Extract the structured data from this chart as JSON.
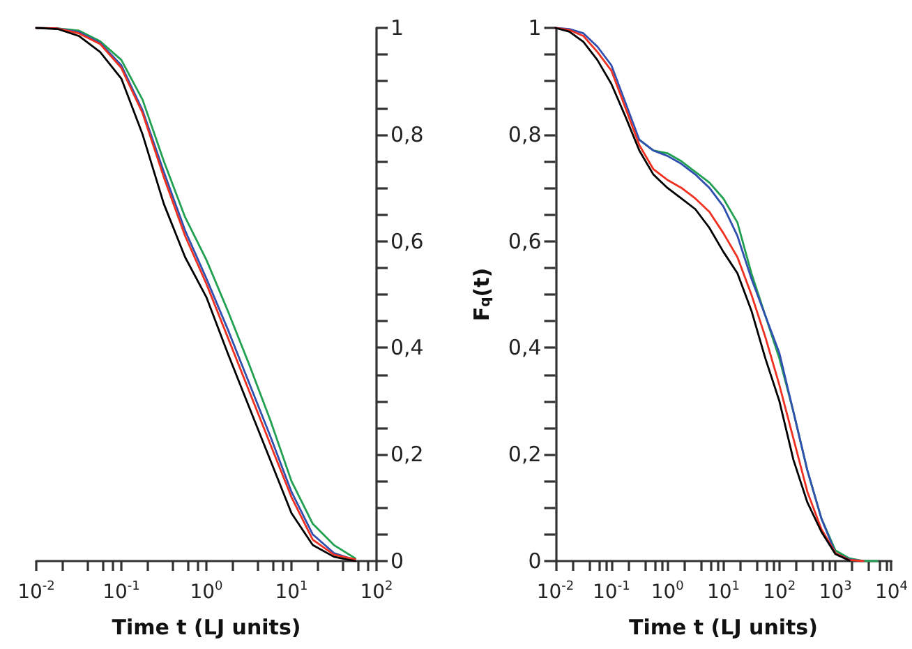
{
  "chart_data": [
    {
      "type": "line",
      "log": "x",
      "xlabel": "Time t (LJ units)",
      "grid": false,
      "marker": "none",
      "line_style": "solid",
      "xlim": [
        0.01,
        100
      ],
      "ylim": [
        0,
        1
      ],
      "xticks": [
        {
          "value": 0.01,
          "label": "10$^{-2}$"
        },
        {
          "value": 0.02,
          "label": null
        },
        {
          "value": 0.04,
          "label": null
        },
        {
          "value": 0.06,
          "label": null
        },
        {
          "value": 0.08,
          "label": null
        },
        {
          "value": 0.1,
          "label": "10$^{-1}$"
        },
        {
          "value": 0.2,
          "label": null
        },
        {
          "value": 0.4,
          "label": null
        },
        {
          "value": 0.6,
          "label": null
        },
        {
          "value": 0.8,
          "label": null
        },
        {
          "value": 1,
          "label": "10$^{0}$"
        },
        {
          "value": 2,
          "label": null
        },
        {
          "value": 4,
          "label": null
        },
        {
          "value": 6,
          "label": null
        },
        {
          "value": 8,
          "label": null
        },
        {
          "value": 10,
          "label": "10$^{1}$"
        },
        {
          "value": 20,
          "label": null
        },
        {
          "value": 40,
          "label": null
        },
        {
          "value": 60,
          "label": null
        },
        {
          "value": 80,
          "label": null
        },
        {
          "value": 100,
          "label": "10$^{2}$"
        }
      ],
      "yticks": [
        {
          "value": 0,
          "label": "0"
        },
        {
          "value": 0.05,
          "label": null
        },
        {
          "value": 0.1,
          "label": null
        },
        {
          "value": 0.15,
          "label": null
        },
        {
          "value": 0.2,
          "label": "0,2"
        },
        {
          "value": 0.25,
          "label": null
        },
        {
          "value": 0.3,
          "label": null
        },
        {
          "value": 0.35,
          "label": null
        },
        {
          "value": 0.4,
          "label": "0,4"
        },
        {
          "value": 0.45,
          "label": null
        },
        {
          "value": 0.5,
          "label": null
        },
        {
          "value": 0.55,
          "label": null
        },
        {
          "value": 0.6,
          "label": "0,6"
        },
        {
          "value": 0.65,
          "label": null
        },
        {
          "value": 0.7,
          "label": null
        },
        {
          "value": 0.75,
          "label": null
        },
        {
          "value": 0.8,
          "label": "0,8"
        },
        {
          "value": 0.85,
          "label": null
        },
        {
          "value": 0.9,
          "label": null
        },
        {
          "value": 0.95,
          "label": null
        },
        {
          "value": 1,
          "label": "1"
        }
      ],
      "x": [
        0.01,
        0.0178,
        0.0316,
        0.0562,
        0.1,
        0.178,
        0.316,
        0.562,
        1,
        1.78,
        3.16,
        5.62,
        10,
        17.8,
        31.6,
        56.2
      ],
      "series": [
        {
          "color": "#20a050",
          "values": [
            1,
            0.999,
            0.995,
            0.975,
            0.94,
            0.865,
            0.75,
            0.645,
            0.565,
            0.47,
            0.37,
            0.265,
            0.15,
            0.07,
            0.03,
            0.005
          ]
        },
        {
          "color": "#3050b0",
          "values": [
            1,
            0.999,
            0.992,
            0.972,
            0.93,
            0.845,
            0.73,
            0.62,
            0.53,
            0.435,
            0.335,
            0.235,
            0.13,
            0.05,
            0.015,
            0.002
          ]
        },
        {
          "color": "#f03020",
          "values": [
            1,
            0.999,
            0.99,
            0.97,
            0.925,
            0.84,
            0.72,
            0.61,
            0.52,
            0.42,
            0.32,
            0.22,
            0.12,
            0.04,
            0.012,
            0.003
          ]
        },
        {
          "color": "#000000",
          "values": [
            1,
            0.998,
            0.985,
            0.955,
            0.905,
            0.8,
            0.67,
            0.57,
            0.495,
            0.39,
            0.29,
            0.19,
            0.09,
            0.03,
            0.008,
            0
          ]
        }
      ]
    },
    {
      "type": "line",
      "log": "x",
      "xlabel": "Time t (LJ units)",
      "ylabel": "F$_{q}$(t)",
      "grid": false,
      "marker": "none",
      "line_style": "solid",
      "xlim": [
        0.01,
        10000
      ],
      "ylim": [
        0,
        1
      ],
      "xticks": [
        {
          "value": 0.01,
          "label": "10$^{-2}$"
        },
        {
          "value": 0.02,
          "label": null
        },
        {
          "value": 0.04,
          "label": null
        },
        {
          "value": 0.06,
          "label": null
        },
        {
          "value": 0.08,
          "label": null
        },
        {
          "value": 0.1,
          "label": "10$^{-1}$"
        },
        {
          "value": 0.2,
          "label": null
        },
        {
          "value": 0.4,
          "label": null
        },
        {
          "value": 0.6,
          "label": null
        },
        {
          "value": 0.8,
          "label": null
        },
        {
          "value": 1,
          "label": "10$^{0}$"
        },
        {
          "value": 2,
          "label": null
        },
        {
          "value": 4,
          "label": null
        },
        {
          "value": 6,
          "label": null
        },
        {
          "value": 8,
          "label": null
        },
        {
          "value": 10,
          "label": "10$^{1}$"
        },
        {
          "value": 20,
          "label": null
        },
        {
          "value": 40,
          "label": null
        },
        {
          "value": 60,
          "label": null
        },
        {
          "value": 80,
          "label": null
        },
        {
          "value": 100,
          "label": "10$^{2}$"
        },
        {
          "value": 200,
          "label": null
        },
        {
          "value": 400,
          "label": null
        },
        {
          "value": 600,
          "label": null
        },
        {
          "value": 800,
          "label": null
        },
        {
          "value": 1000,
          "label": "10$^{3}$"
        },
        {
          "value": 2000,
          "label": null
        },
        {
          "value": 4000,
          "label": null
        },
        {
          "value": 6000,
          "label": null
        },
        {
          "value": 8000,
          "label": null
        },
        {
          "value": 10000,
          "label": "10$^{4}$"
        }
      ],
      "yticks": [
        {
          "value": 0,
          "label": "0"
        },
        {
          "value": 0.05,
          "label": null
        },
        {
          "value": 0.1,
          "label": null
        },
        {
          "value": 0.15,
          "label": null
        },
        {
          "value": 0.2,
          "label": "0,2"
        },
        {
          "value": 0.25,
          "label": null
        },
        {
          "value": 0.3,
          "label": null
        },
        {
          "value": 0.35,
          "label": null
        },
        {
          "value": 0.4,
          "label": "0,4"
        },
        {
          "value": 0.45,
          "label": null
        },
        {
          "value": 0.5,
          "label": null
        },
        {
          "value": 0.55,
          "label": null
        },
        {
          "value": 0.6,
          "label": "0,6"
        },
        {
          "value": 0.65,
          "label": null
        },
        {
          "value": 0.7,
          "label": null
        },
        {
          "value": 0.75,
          "label": null
        },
        {
          "value": 0.8,
          "label": "0,8"
        },
        {
          "value": 0.85,
          "label": null
        },
        {
          "value": 0.9,
          "label": null
        },
        {
          "value": 0.95,
          "label": null
        },
        {
          "value": 1,
          "label": "1"
        }
      ],
      "x": [
        0.01,
        0.0178,
        0.0316,
        0.0562,
        0.1,
        0.178,
        0.316,
        0.562,
        1,
        1.78,
        3.16,
        5.62,
        10,
        17.8,
        31.6,
        56.2,
        100,
        178,
        316,
        562,
        1000,
        1780,
        3160,
        5620
      ],
      "series": [
        {
          "color": "#20a050",
          "values": [
            null,
            null,
            null,
            null,
            null,
            null,
            0.79,
            0.77,
            0.765,
            0.75,
            0.73,
            0.71,
            0.68,
            0.635,
            0.54,
            0.46,
            0.38,
            0.28,
            0.17,
            0.08,
            0.02,
            0.005,
            0,
            0
          ]
        },
        {
          "color": "#3050b0",
          "values": [
            1,
            0.998,
            0.99,
            0.965,
            0.93,
            0.86,
            0.79,
            0.77,
            0.76,
            0.745,
            0.725,
            0.7,
            0.665,
            0.61,
            0.53,
            0.46,
            0.39,
            0.28,
            0.17,
            0.08,
            0.015,
            0.003,
            0,
            null
          ]
        },
        {
          "color": "#f03020",
          "values": [
            1,
            0.996,
            0.985,
            0.955,
            0.92,
            0.85,
            0.78,
            0.735,
            0.715,
            0.7,
            0.68,
            0.655,
            0.615,
            0.57,
            0.5,
            0.42,
            0.33,
            0.23,
            0.13,
            0.06,
            0.015,
            0.002,
            0,
            null
          ]
        },
        {
          "color": "#000000",
          "values": [
            1,
            0.993,
            0.974,
            0.94,
            0.895,
            0.834,
            0.77,
            0.725,
            0.7,
            0.68,
            0.66,
            0.625,
            0.58,
            0.54,
            0.47,
            0.38,
            0.3,
            0.19,
            0.11,
            0.055,
            0.013,
            0.001,
            null,
            null
          ]
        }
      ]
    }
  ]
}
